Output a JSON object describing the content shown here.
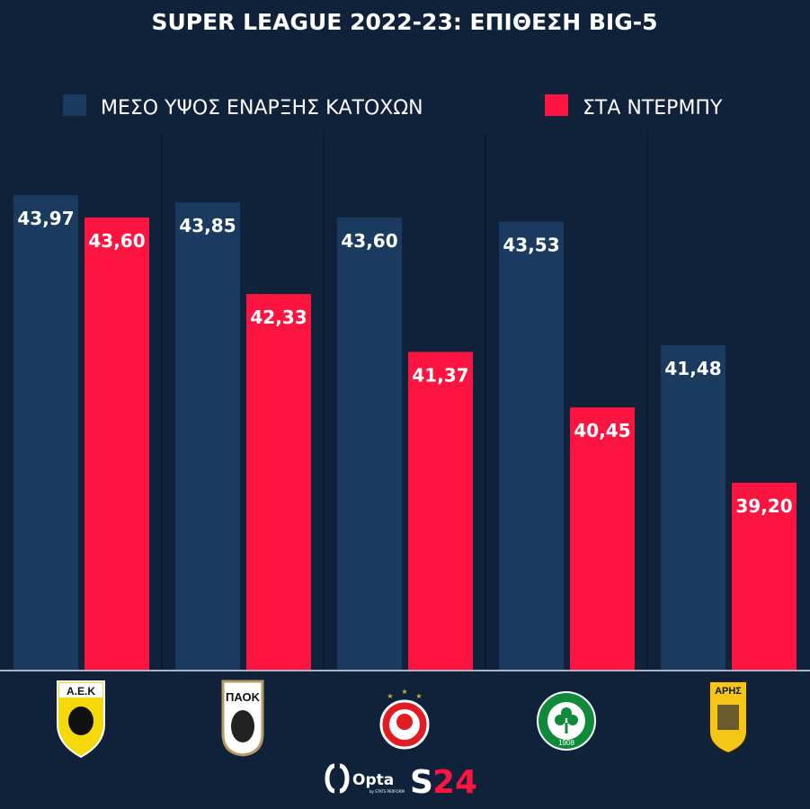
{
  "chart_data": {
    "type": "bar",
    "title": "SUPER LEAGUE 2022-23: ΕΠΙΘΕΣΗ BIG-5",
    "xlabel": "",
    "ylabel": "",
    "ylim": [
      36.1,
      45
    ],
    "grid": false,
    "legend_position": "top",
    "categories": [
      "ΑΕΚ",
      "ΠΑΟΚ",
      "ΟΛΥΜΠΙΑΚΟΣ",
      "ΠΑΝΑΘΗΝΑΪΚΟΣ",
      "ΑΡΗΣ"
    ],
    "series": [
      {
        "name": "ΜΕΣΟ ΥΨΟΣ ΕΝΑΡΞΗΣ ΚΑΤΟΧΩΝ",
        "color": "#1b3a60",
        "values": [
          43.97,
          43.85,
          43.6,
          43.53,
          41.48
        ],
        "labels": [
          "43,97",
          "43,85",
          "43,60",
          "43,53",
          "41,48"
        ]
      },
      {
        "name": "ΣΤΑ ΝΤΕΡΜΠΥ",
        "color": "#fe1440",
        "values": [
          43.6,
          42.33,
          41.37,
          40.45,
          39.2
        ],
        "labels": [
          "43,60",
          "42,33",
          "41,37",
          "40,45",
          "39,20"
        ]
      }
    ]
  },
  "logos": [
    {
      "text": "Α.Ε.Κ",
      "icon": "aek-crest"
    },
    {
      "text": "ΠΑΟΚ",
      "icon": "paok-crest"
    },
    {
      "text": "",
      "icon": "olympiacos-crest"
    },
    {
      "text": "1908",
      "icon": "panathinaikos-crest"
    },
    {
      "text": "ΑΡΗΣ",
      "icon": "aris-crest"
    }
  ],
  "footer": {
    "opta": "Opta",
    "opta_sub": "by STATS PERFORM",
    "brand_s": "S",
    "brand_num": "24"
  },
  "colors": {
    "background": "#10213a",
    "divider": "#0c1a2e",
    "baseline": "#a9b4c4"
  }
}
